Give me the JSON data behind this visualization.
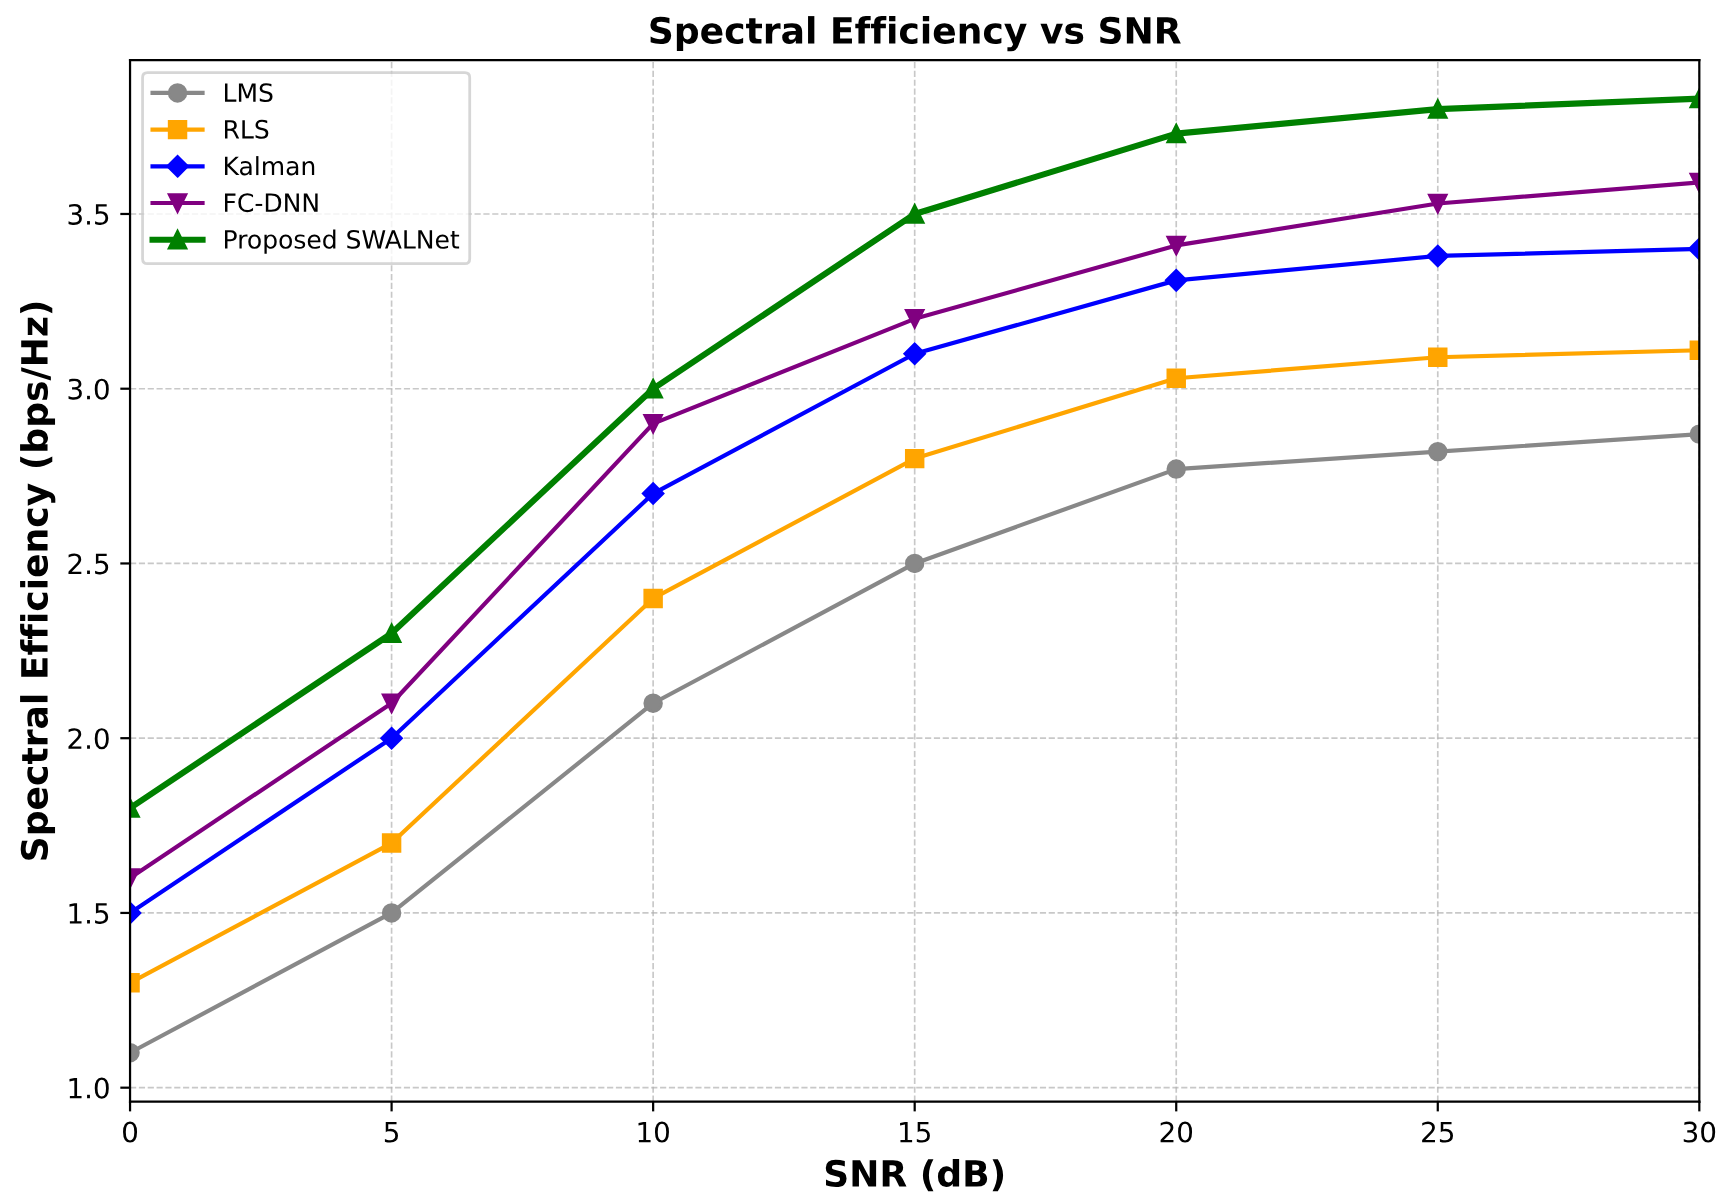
{
  "chart_data": {
    "type": "line",
    "title": "Spectral Efficiency vs SNR",
    "xlabel": "SNR (dB)",
    "ylabel": "Spectral Efficiency (bps/Hz)",
    "x": [
      0,
      5,
      10,
      15,
      20,
      25,
      30
    ],
    "series": [
      {
        "name": "LMS",
        "color": "#888888",
        "marker": "circle",
        "values": [
          1.1,
          1.5,
          2.1,
          2.5,
          2.77,
          2.82,
          2.87
        ]
      },
      {
        "name": "RLS",
        "color": "#ffa500",
        "marker": "square",
        "values": [
          1.3,
          1.7,
          2.4,
          2.8,
          3.03,
          3.09,
          3.11
        ]
      },
      {
        "name": "Kalman",
        "color": "#0000ff",
        "marker": "diamond",
        "values": [
          1.5,
          2.0,
          2.7,
          3.1,
          3.31,
          3.38,
          3.4
        ]
      },
      {
        "name": "FC-DNN",
        "color": "#800080",
        "marker": "triangle_down",
        "values": [
          1.6,
          2.1,
          2.9,
          3.2,
          3.41,
          3.53,
          3.59
        ]
      },
      {
        "name": "Proposed SWALNet",
        "color": "#008000",
        "marker": "triangle",
        "values": [
          1.8,
          2.3,
          3.0,
          3.5,
          3.73,
          3.8,
          3.83
        ]
      }
    ],
    "xlim": [
      0,
      30
    ],
    "xticks": [
      0,
      5,
      10,
      15,
      20,
      25,
      30
    ],
    "ylim": [
      0.96,
      3.94
    ],
    "yticks": [
      {
        "value": 1.0,
        "label": "1.0"
      },
      {
        "value": 1.5,
        "label": "1.5"
      },
      {
        "value": 2.0,
        "label": "2.0"
      },
      {
        "value": 2.5,
        "label": "2.5"
      },
      {
        "value": 3.0,
        "label": "3.0"
      },
      {
        "value": 3.5,
        "label": "3.5"
      }
    ],
    "grid": true,
    "legend": "top left",
    "line_style": "solid"
  }
}
